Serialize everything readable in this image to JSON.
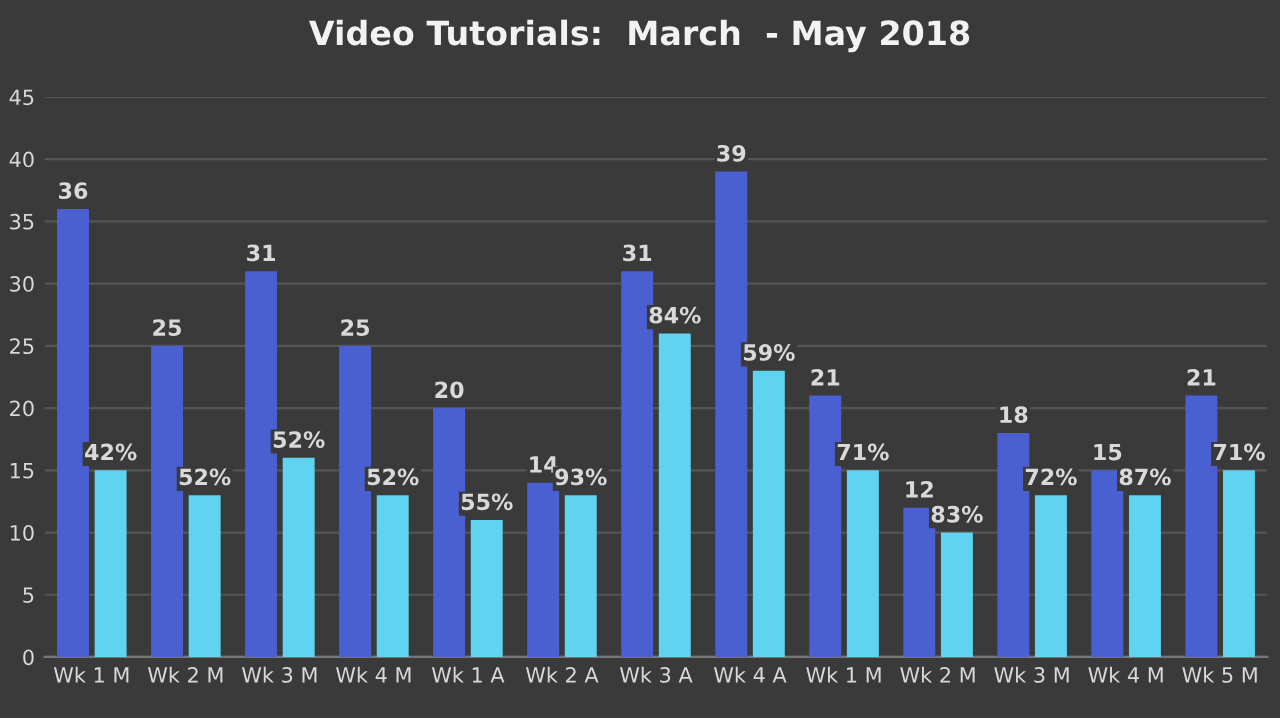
{
  "chart_data": {
    "type": "bar",
    "title": "Video Tutorials:  March  - May 2018",
    "categories": [
      "Wk 1 M",
      "Wk 2 M",
      "Wk 3 M",
      "Wk 4 M",
      "Wk 1 A",
      "Wk 2 A",
      "Wk 3 A",
      "Wk 4 A",
      "Wk 1 M",
      "Wk 2 M",
      "Wk 3 M",
      "Wk 4 M",
      "Wk 5 M"
    ],
    "series": [
      {
        "color": "#4a5fd0",
        "values": [
          36,
          25,
          31,
          25,
          20,
          14,
          31,
          39,
          21,
          12,
          18,
          15,
          21
        ],
        "value_labels": [
          "36",
          "25",
          "31",
          "25",
          "20",
          "14",
          "31",
          "39",
          "21",
          "12",
          "18",
          "15",
          "21"
        ]
      },
      {
        "color": "#5fd3f0",
        "values": [
          15,
          13,
          16,
          13,
          11,
          13,
          26,
          23,
          15,
          10,
          13,
          13,
          15
        ]
      }
    ],
    "annotations": [
      "42%",
      "52%",
      "52%",
      "52%",
      "55%",
      "93%",
      "84%",
      "59%",
      "71%",
      "83%",
      "72%",
      "87%",
      "71%"
    ],
    "ylim": [
      0,
      45
    ],
    "yticks": [
      0,
      5,
      10,
      15,
      20,
      25,
      30,
      35,
      40,
      45
    ],
    "grid": "y"
  }
}
